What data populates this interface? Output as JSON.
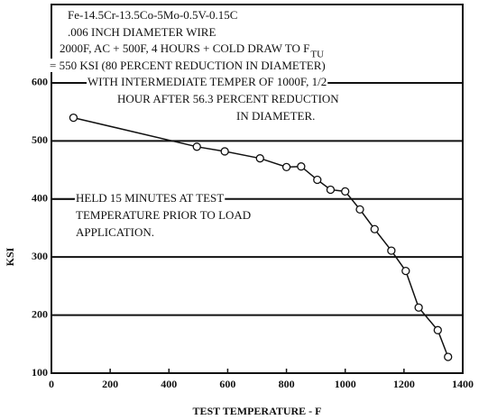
{
  "chart_data": {
    "type": "scatter",
    "xlabel": "TEST TEMPERATURE - F",
    "ylabel": "KSI",
    "annotation": [
      "Fe-14.5Cr-13.5Co-5Mo-0.5V-0.15C",
      ".006 INCH DIAMETER WIRE",
      "2000F, AC + 500F, 4 HOURS + COLD DRAW TO F",
      "= 550 KSI (80 PERCENT REDUCTION IN DIAMETER)",
      "WITH INTERMEDIATE TEMPER OF 1000F, 1/2",
      "HOUR AFTER 56.3 PERCENT REDUCTION",
      "IN DIAMETER."
    ],
    "annotation_subscript": "TU",
    "note": [
      "HELD 15 MINUTES AT TEST",
      "TEMPERATURE PRIOR TO LOAD",
      "APPLICATION."
    ],
    "x": [
      75,
      495,
      590,
      710,
      800,
      850,
      905,
      950,
      1000,
      1050,
      1100,
      1157,
      1206,
      1250,
      1315,
      1350
    ],
    "values": [
      540,
      490,
      482,
      470,
      455,
      456,
      433,
      416,
      413,
      382,
      348,
      311,
      276,
      213,
      174,
      128
    ],
    "color": "#111111",
    "xlim": [
      0,
      1400
    ],
    "xticks": [
      0,
      200,
      400,
      600,
      800,
      1000,
      1200,
      1400
    ],
    "ylim": [
      100,
      735
    ],
    "yticks": [
      100,
      200,
      300,
      400,
      500,
      600
    ],
    "grid": true
  }
}
